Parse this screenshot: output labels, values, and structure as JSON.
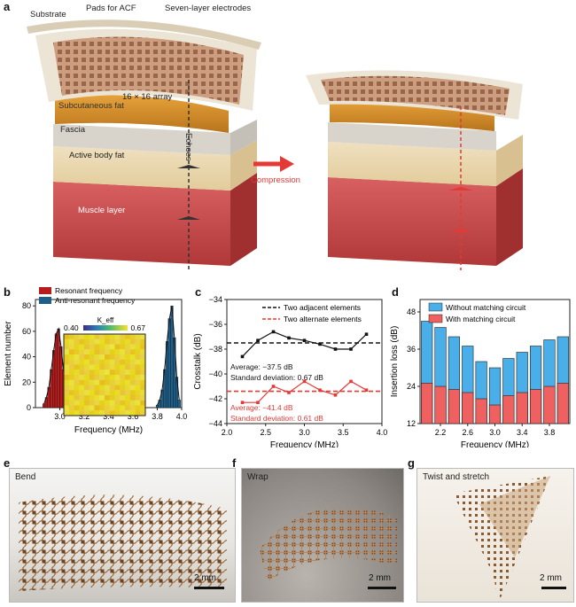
{
  "panel_a": {
    "letter": "a",
    "labels": {
      "substrate": "Substrate",
      "pads": "Pads for ACF",
      "electrodes": "Seven-layer electrodes",
      "array": "16 × 16 array",
      "subcutaneous": "Subcutaneous fat",
      "fascia": "Fascia",
      "active_fat": "Active body fat",
      "muscle": "Muscle layer",
      "echoes": "Echoes",
      "compression": "Compression"
    },
    "colors": {
      "accent": "#e53935"
    }
  },
  "panel_b": {
    "letter": "b"
  },
  "panel_c": {
    "letter": "c"
  },
  "panel_d": {
    "letter": "d"
  },
  "panel_e": {
    "letter": "e",
    "label": "Bend",
    "scale": "2 mm"
  },
  "panel_f": {
    "letter": "f",
    "label": "Wrap",
    "scale": "2 mm"
  },
  "panel_g": {
    "letter": "g",
    "label": "Twist and stretch",
    "scale": "2 mm"
  },
  "chart_data": [
    {
      "id": "b",
      "type": "bar",
      "xlabel": "Frequency (MHz)",
      "ylabel": "Element number",
      "xlim": [
        2.8,
        4.0
      ],
      "ylim": [
        0,
        85
      ],
      "xticks": [
        "3.0",
        "3.2",
        "3.4",
        "3.6",
        "3.8",
        "4.0"
      ],
      "yticks": [
        "0",
        "20",
        "40",
        "60",
        "80"
      ],
      "legend_position": "top-left",
      "series": [
        {
          "name": "Resonant frequency",
          "color": "#b71c1c",
          "x": [
            2.87,
            2.89,
            2.91,
            2.93,
            2.95,
            2.97,
            2.99,
            3.01,
            3.03,
            3.05,
            3.07,
            3.09
          ],
          "values": [
            3,
            8,
            16,
            30,
            45,
            58,
            62,
            48,
            30,
            16,
            7,
            3
          ]
        },
        {
          "name": "Anti-resonant frequency",
          "color": "#1e5f8a",
          "x": [
            3.8,
            3.82,
            3.84,
            3.86,
            3.88,
            3.9,
            3.92,
            3.94,
            3.96,
            3.98
          ],
          "values": [
            2,
            6,
            14,
            30,
            52,
            70,
            80,
            55,
            24,
            6
          ]
        }
      ],
      "inset": {
        "type": "heatmap",
        "title": "K_eff",
        "min_label": "0.40",
        "max_label": "0.67",
        "size": 16
      }
    },
    {
      "id": "c",
      "type": "line",
      "xlabel": "Frequency (MHz)",
      "ylabel": "Crosstalk (dB)",
      "xlim": [
        2.0,
        4.0
      ],
      "ylim": [
        -44,
        -34
      ],
      "xticks": [
        "2.0",
        "2.5",
        "3.0",
        "3.5",
        "4.0"
      ],
      "yticks": [
        "-34",
        "-36",
        "-38",
        "-40",
        "-42",
        "-44"
      ],
      "legend_position": "top",
      "series": [
        {
          "name": "Two adjacent elements",
          "color": "#111111",
          "x": [
            2.2,
            2.4,
            2.6,
            2.8,
            3.0,
            3.2,
            3.4,
            3.6,
            3.8
          ],
          "values": [
            -38.6,
            -37.3,
            -36.6,
            -37.1,
            -37.3,
            -37.6,
            -38.0,
            -38.0,
            -36.8
          ],
          "average": -37.5
        },
        {
          "name": "Two alternate elements",
          "color": "#e53935",
          "x": [
            2.2,
            2.4,
            2.6,
            2.8,
            3.0,
            3.2,
            3.4,
            3.6,
            3.8
          ],
          "values": [
            -42.3,
            -42.3,
            -41.0,
            -41.5,
            -40.6,
            -41.3,
            -41.7,
            -40.6,
            -41.3
          ],
          "average": -41.4
        }
      ],
      "annotations": [
        "Average: −37.5 dB",
        "Standard deviation: 0.67 dB",
        "Average: −41.4 dB",
        "Standard deviation: 0.61 dB"
      ]
    },
    {
      "id": "d",
      "type": "bar",
      "xlabel": "Frequency (MHz)",
      "ylabel": "Insertion loss (dB)",
      "ylim": [
        12,
        52
      ],
      "yticks": [
        "12",
        "24",
        "36",
        "48"
      ],
      "xticks": [
        "2.2",
        "2.6",
        "3.0",
        "3.4",
        "3.8"
      ],
      "legend_position": "top",
      "categories": [
        "2.0",
        "2.2",
        "2.4",
        "2.6",
        "2.8",
        "3.0",
        "3.2",
        "3.4",
        "3.6",
        "3.8",
        "4.0"
      ],
      "series": [
        {
          "name": "Without matching circuit",
          "color": "#4aaee8",
          "values": [
            45,
            43,
            40,
            37,
            32,
            30,
            33,
            35,
            37,
            39,
            40
          ]
        },
        {
          "name": "With matching circuit",
          "color": "#ef6060",
          "values": [
            25,
            24,
            23,
            22,
            20,
            18,
            21,
            22,
            23,
            24,
            25
          ]
        }
      ]
    }
  ]
}
